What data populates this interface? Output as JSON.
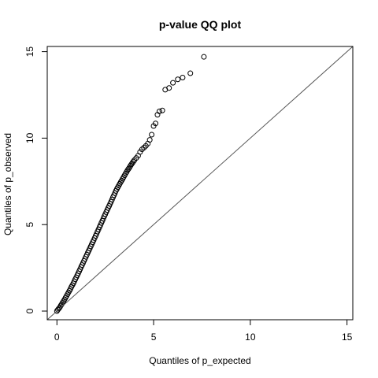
{
  "chart_data": {
    "type": "scatter",
    "title": "p-value QQ plot",
    "xlabel": "Quantiles of p_expected",
    "ylabel": "Quantiles of p_observed",
    "xlim": [
      -0.5,
      15.3
    ],
    "ylim": [
      -0.5,
      15.3
    ],
    "xticks": [
      0,
      5,
      10,
      15
    ],
    "yticks": [
      0,
      5,
      10,
      15
    ],
    "grid": false,
    "reference_line": {
      "type": "diagonal",
      "slope": 1,
      "intercept": 0,
      "color": "#555555"
    },
    "marker": {
      "shape": "open-circle",
      "color": "#000000"
    },
    "series": [
      {
        "points": [
          [
            0.0,
            0.0
          ],
          [
            0.05,
            0.08
          ],
          [
            0.1,
            0.15
          ],
          [
            0.15,
            0.22
          ],
          [
            0.2,
            0.32
          ],
          [
            0.25,
            0.4
          ],
          [
            0.3,
            0.5
          ],
          [
            0.35,
            0.58
          ],
          [
            0.4,
            0.68
          ],
          [
            0.45,
            0.78
          ],
          [
            0.5,
            0.88
          ],
          [
            0.55,
            0.98
          ],
          [
            0.6,
            1.08
          ],
          [
            0.65,
            1.18
          ],
          [
            0.7,
            1.28
          ],
          [
            0.75,
            1.4
          ],
          [
            0.8,
            1.5
          ],
          [
            0.85,
            1.6
          ],
          [
            0.9,
            1.72
          ],
          [
            0.95,
            1.84
          ],
          [
            1.0,
            1.95
          ],
          [
            1.05,
            2.06
          ],
          [
            1.1,
            2.18
          ],
          [
            1.15,
            2.3
          ],
          [
            1.2,
            2.42
          ],
          [
            1.25,
            2.55
          ],
          [
            1.3,
            2.66
          ],
          [
            1.35,
            2.78
          ],
          [
            1.4,
            2.9
          ],
          [
            1.45,
            3.02
          ],
          [
            1.5,
            3.14
          ],
          [
            1.55,
            3.26
          ],
          [
            1.6,
            3.38
          ],
          [
            1.65,
            3.5
          ],
          [
            1.7,
            3.62
          ],
          [
            1.75,
            3.74
          ],
          [
            1.8,
            3.86
          ],
          [
            1.85,
            3.98
          ],
          [
            1.9,
            4.1
          ],
          [
            1.95,
            4.22
          ],
          [
            2.0,
            4.35
          ],
          [
            2.05,
            4.47
          ],
          [
            2.1,
            4.6
          ],
          [
            2.15,
            4.72
          ],
          [
            2.2,
            4.85
          ],
          [
            2.25,
            4.97
          ],
          [
            2.3,
            5.1
          ],
          [
            2.35,
            5.22
          ],
          [
            2.4,
            5.35
          ],
          [
            2.45,
            5.48
          ],
          [
            2.5,
            5.6
          ],
          [
            2.55,
            5.72
          ],
          [
            2.6,
            5.84
          ],
          [
            2.65,
            5.96
          ],
          [
            2.7,
            6.08
          ],
          [
            2.75,
            6.2
          ],
          [
            2.8,
            6.32
          ],
          [
            2.85,
            6.45
          ],
          [
            2.9,
            6.58
          ],
          [
            2.95,
            6.7
          ],
          [
            3.0,
            6.82
          ],
          [
            3.05,
            6.95
          ],
          [
            3.1,
            7.06
          ],
          [
            3.15,
            7.16
          ],
          [
            3.2,
            7.26
          ],
          [
            3.25,
            7.36
          ],
          [
            3.3,
            7.46
          ],
          [
            3.35,
            7.55
          ],
          [
            3.4,
            7.65
          ],
          [
            3.45,
            7.75
          ],
          [
            3.5,
            7.85
          ],
          [
            3.55,
            7.95
          ],
          [
            3.6,
            8.04
          ],
          [
            3.65,
            8.14
          ],
          [
            3.7,
            8.22
          ],
          [
            3.75,
            8.3
          ],
          [
            3.8,
            8.4
          ],
          [
            3.85,
            8.48
          ],
          [
            3.9,
            8.56
          ],
          [
            3.95,
            8.64
          ],
          [
            4.0,
            8.72
          ],
          [
            4.1,
            8.85
          ],
          [
            4.2,
            8.98
          ],
          [
            4.3,
            9.2
          ],
          [
            4.4,
            9.35
          ],
          [
            4.5,
            9.45
          ],
          [
            4.6,
            9.55
          ],
          [
            4.7,
            9.68
          ],
          [
            4.8,
            9.9
          ],
          [
            4.9,
            10.2
          ],
          [
            5.0,
            10.7
          ],
          [
            5.1,
            10.85
          ],
          [
            5.2,
            11.35
          ],
          [
            5.3,
            11.55
          ],
          [
            5.45,
            11.6
          ],
          [
            5.6,
            12.8
          ],
          [
            5.8,
            12.9
          ],
          [
            6.0,
            13.2
          ],
          [
            6.25,
            13.4
          ],
          [
            6.5,
            13.5
          ],
          [
            6.9,
            13.75
          ],
          [
            7.6,
            14.7
          ]
        ]
      }
    ]
  }
}
